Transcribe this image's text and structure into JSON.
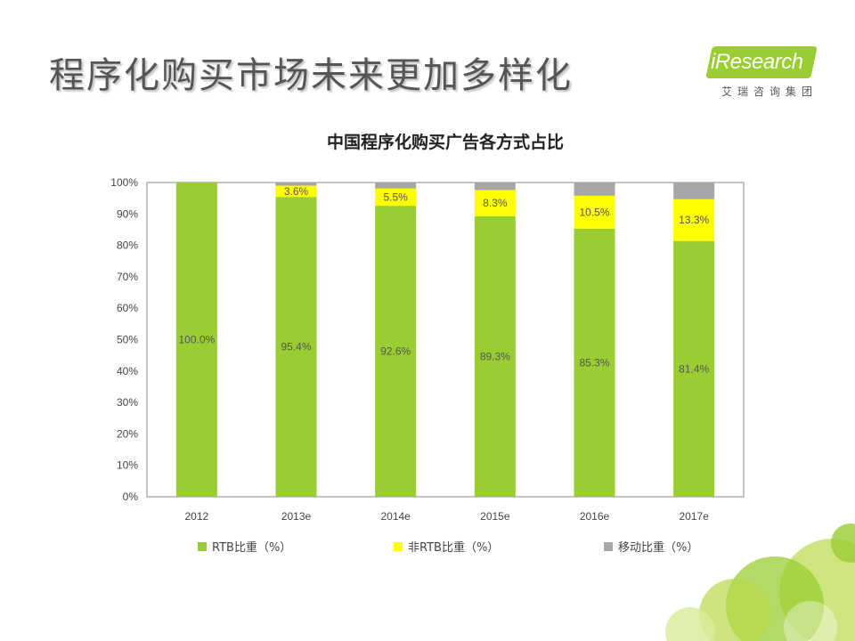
{
  "slide_title": "程序化购买市场未来更加多样化",
  "logo": {
    "text": "iResearch",
    "subtitle": "艾瑞咨询集团"
  },
  "colors": {
    "rtb": "#9acd32",
    "non_rtb": "#ffff00",
    "mobile": "#a6a6a6",
    "accent": "#9acd32"
  },
  "chart_data": {
    "type": "bar",
    "stacked": true,
    "title": "中国程序化购买广告各方式占比",
    "categories": [
      "2012",
      "2013e",
      "2014e",
      "2015e",
      "2016e",
      "2017e"
    ],
    "series": [
      {
        "name": "RTB比重（%）",
        "values": [
          100.0,
          95.4,
          92.6,
          89.3,
          85.3,
          81.4
        ],
        "labels": [
          "100.0%",
          "95.4%",
          "92.6%",
          "89.3%",
          "85.3%",
          "81.4%"
        ]
      },
      {
        "name": "非RTB比重（%）",
        "values": [
          0.0,
          3.6,
          5.5,
          8.3,
          10.5,
          13.3
        ],
        "labels": [
          "",
          "3.6%",
          "5.5%",
          "8.3%",
          "10.5%",
          "13.3%"
        ]
      },
      {
        "name": "移动比重（%）",
        "values": [
          0.0,
          1.0,
          1.9,
          2.4,
          4.2,
          5.3
        ],
        "labels": [
          "",
          "",
          "",
          "",
          "",
          ""
        ]
      }
    ],
    "ylim": [
      0,
      100
    ],
    "yticks": [
      "0%",
      "10%",
      "20%",
      "30%",
      "40%",
      "50%",
      "60%",
      "70%",
      "80%",
      "90%",
      "100%"
    ],
    "xlabel": "",
    "ylabel": "",
    "grid": false,
    "legend_position": "bottom"
  }
}
